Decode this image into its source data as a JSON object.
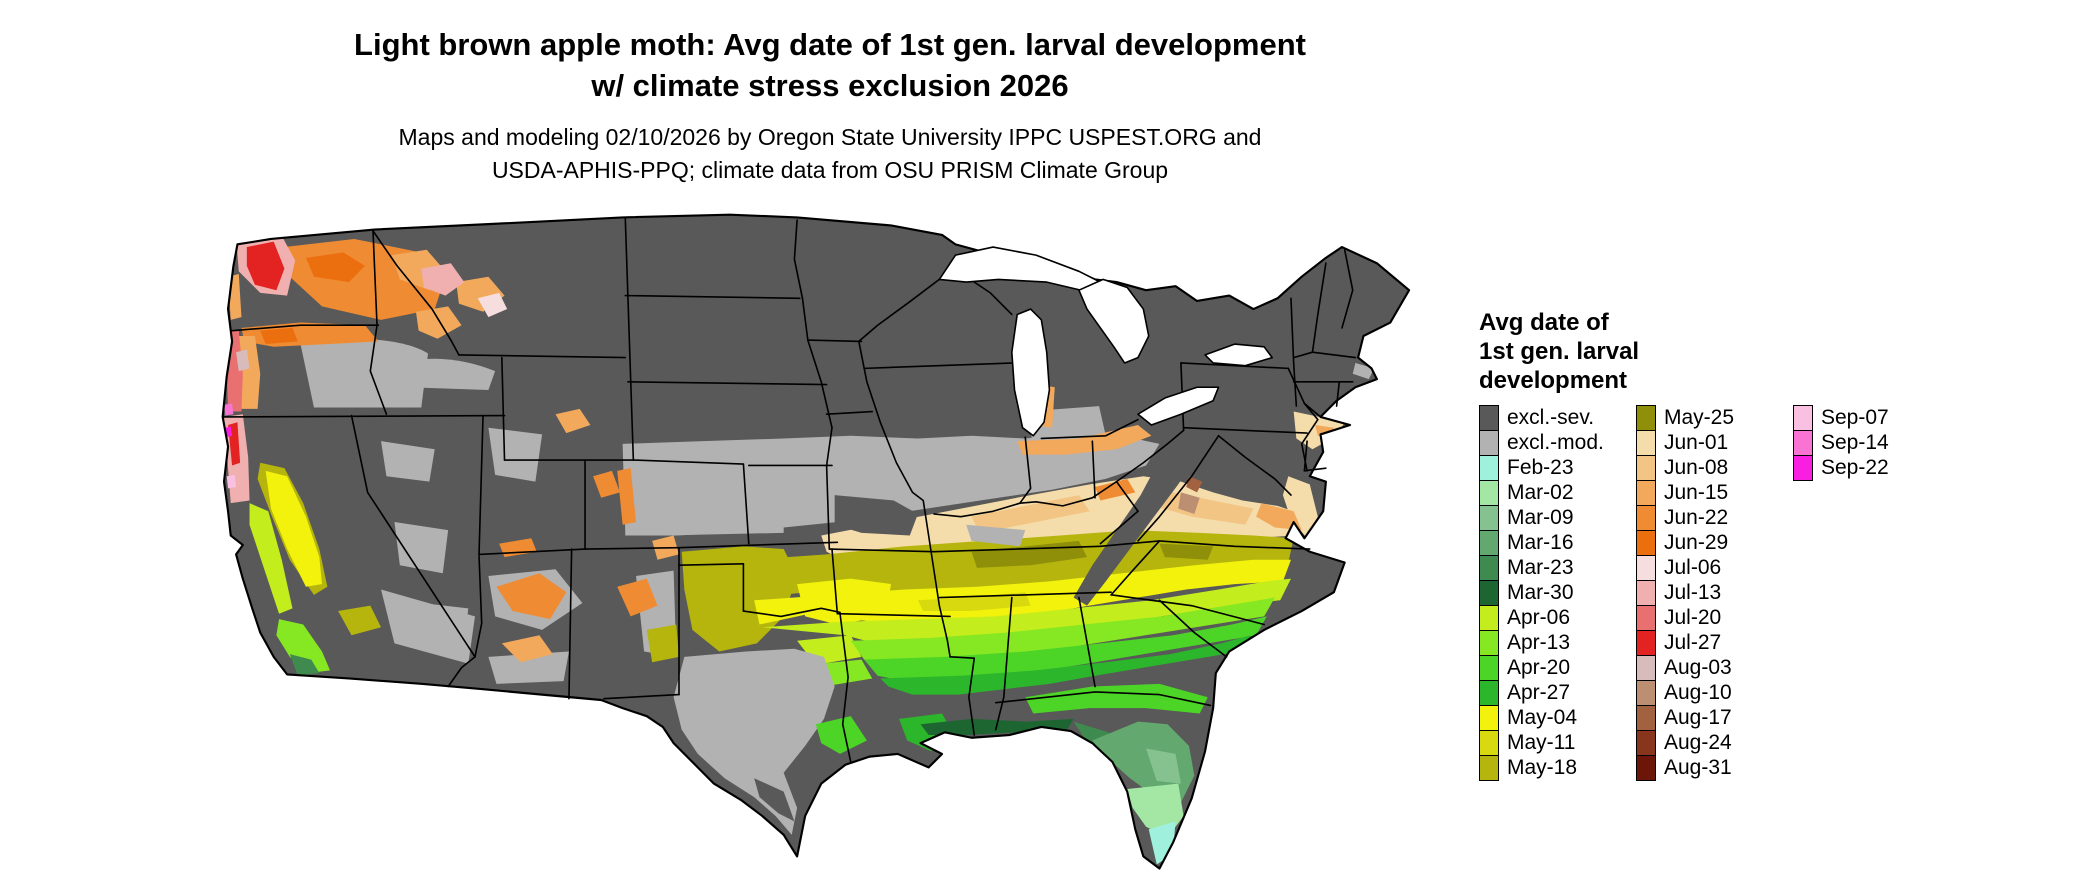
{
  "title": {
    "line1": "Light brown apple moth: Avg date of 1st gen. larval development",
    "line2": "w/ climate stress exclusion 2026"
  },
  "subtitle": {
    "line1": "Maps and modeling 02/10/2026 by Oregon State University IPPC USPEST.ORG and",
    "line2": "USDA-APHIS-PPQ; climate data from OSU PRISM Climate Group"
  },
  "legend": {
    "title_lines": [
      "Avg date of",
      "1st gen. larval",
      "development"
    ],
    "columns": [
      [
        {
          "label": "excl.-sev.",
          "key": "excl_sev"
        },
        {
          "label": "excl.-mod.",
          "key": "excl_mod"
        },
        {
          "label": "Feb-23",
          "key": "feb23"
        },
        {
          "label": "Mar-02",
          "key": "mar02"
        },
        {
          "label": "Mar-09",
          "key": "mar09"
        },
        {
          "label": "Mar-16",
          "key": "mar16"
        },
        {
          "label": "Mar-23",
          "key": "mar23"
        },
        {
          "label": "Mar-30",
          "key": "mar30"
        },
        {
          "label": "Apr-06",
          "key": "apr06"
        },
        {
          "label": "Apr-13",
          "key": "apr13"
        },
        {
          "label": "Apr-20",
          "key": "apr20"
        },
        {
          "label": "Apr-27",
          "key": "apr27"
        },
        {
          "label": "May-04",
          "key": "may04"
        },
        {
          "label": "May-11",
          "key": "may11"
        },
        {
          "label": "May-18",
          "key": "may18"
        }
      ],
      [
        {
          "label": "May-25",
          "key": "may25"
        },
        {
          "label": "Jun-01",
          "key": "jun01"
        },
        {
          "label": "Jun-08",
          "key": "jun08"
        },
        {
          "label": "Jun-15",
          "key": "jun15"
        },
        {
          "label": "Jun-22",
          "key": "jun22"
        },
        {
          "label": "Jun-29",
          "key": "jun29"
        },
        {
          "label": "Jul-06",
          "key": "jul06"
        },
        {
          "label": "Jul-13",
          "key": "jul13"
        },
        {
          "label": "Jul-20",
          "key": "jul20"
        },
        {
          "label": "Jul-27",
          "key": "jul27"
        },
        {
          "label": "Aug-03",
          "key": "aug03"
        },
        {
          "label": "Aug-10",
          "key": "aug10"
        },
        {
          "label": "Aug-17",
          "key": "aug17"
        },
        {
          "label": "Aug-24",
          "key": "aug24"
        },
        {
          "label": "Aug-31",
          "key": "aug31"
        }
      ],
      [
        {
          "label": "Sep-07",
          "key": "sep07"
        },
        {
          "label": "Sep-14",
          "key": "sep14"
        },
        {
          "label": "Sep-22",
          "key": "sep22"
        }
      ]
    ]
  },
  "palette": {
    "excl_sev": "#595959",
    "excl_mod": "#b2b2b2",
    "feb23": "#9ff0dc",
    "mar02": "#a4e6a4",
    "mar09": "#85c28f",
    "mar16": "#63a96f",
    "mar23": "#3f8b4f",
    "mar30": "#1d6632",
    "apr06": "#c3ed1d",
    "apr13": "#86e723",
    "apr20": "#4cd426",
    "apr27": "#2cb62c",
    "may04": "#f2f20c",
    "may11": "#d9d90f",
    "may18": "#b5b50d",
    "may25": "#8f8f0a",
    "jun01": "#f4dcab",
    "jun08": "#f3c585",
    "jun15": "#f2a95c",
    "jun22": "#ef8c33",
    "jun29": "#ec6f0f",
    "jul06": "#f6dede",
    "jul13": "#f0b0b0",
    "jul20": "#e97070",
    "jul27": "#e32222",
    "aug03": "#d8bcbc",
    "aug10": "#bc8e72",
    "aug17": "#a2613f",
    "aug24": "#87351c",
    "aug31": "#6b1608",
    "sep07": "#f9c0e2",
    "sep14": "#f973d2",
    "sep22": "#f81fe1"
  }
}
